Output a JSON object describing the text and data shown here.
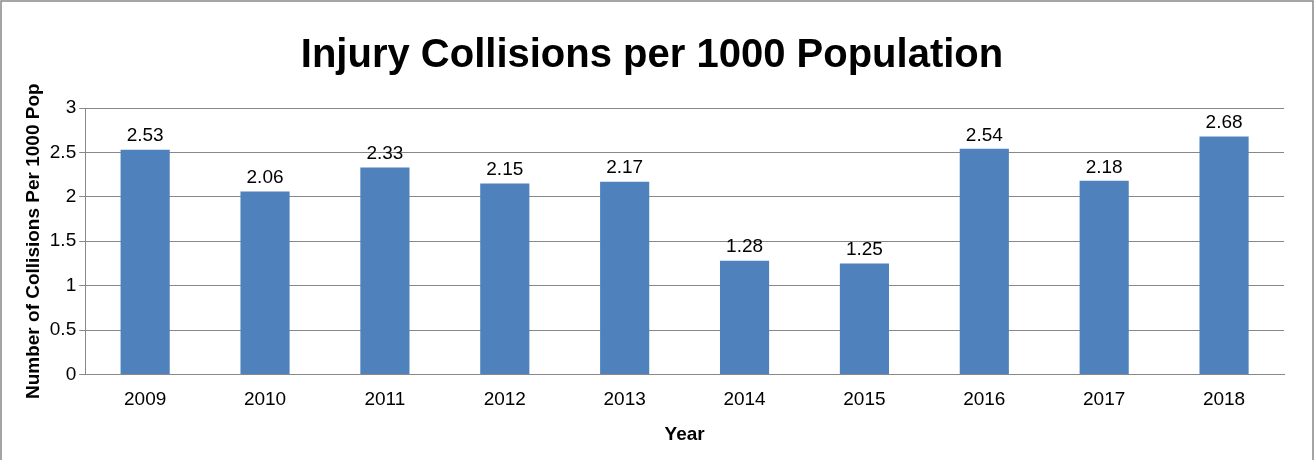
{
  "chart_data": {
    "type": "bar",
    "title": "Injury Collisions per 1000 Population",
    "xlabel": "Year",
    "ylabel": "Number of Collisions Per 1000 Pop",
    "categories": [
      "2009",
      "2010",
      "2011",
      "2012",
      "2013",
      "2014",
      "2015",
      "2016",
      "2017",
      "2018"
    ],
    "values": [
      2.53,
      2.06,
      2.33,
      2.15,
      2.17,
      1.28,
      1.25,
      2.54,
      2.18,
      2.68
    ],
    "color": "#4f81bd",
    "ylim": [
      0,
      3
    ],
    "yticks": [
      0,
      0.5,
      1,
      1.5,
      2,
      2.5,
      3
    ],
    "grid": "y",
    "data_labels": true
  }
}
